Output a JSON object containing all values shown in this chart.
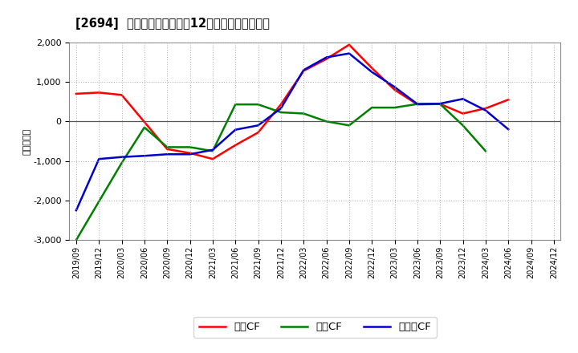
{
  "title": "[2694]  キャッシュフローの12か月移動合計の推移",
  "ylabel": "（百万円）",
  "ylim": [
    -3000,
    2000
  ],
  "yticks": [
    -3000,
    -2000,
    -1000,
    0,
    1000,
    2000
  ],
  "background_color": "#ffffff",
  "grid_color": "#aaaaaa",
  "dates": [
    "2019/09",
    "2019/12",
    "2020/03",
    "2020/06",
    "2020/09",
    "2020/12",
    "2021/03",
    "2021/06",
    "2021/09",
    "2021/12",
    "2022/03",
    "2022/06",
    "2022/09",
    "2022/12",
    "2023/03",
    "2023/06",
    "2023/09",
    "2023/12",
    "2024/03",
    "2024/06",
    "2024/09",
    "2024/12"
  ],
  "operating_cf": [
    700,
    730,
    670,
    null,
    -700,
    -800,
    -950,
    -600,
    -280,
    430,
    1280,
    1580,
    1940,
    1350,
    800,
    430,
    440,
    200,
    330,
    550,
    null,
    null
  ],
  "investing_cf": [
    -3000,
    null,
    -1050,
    -150,
    -650,
    -650,
    -750,
    430,
    430,
    230,
    200,
    0,
    -100,
    350,
    350,
    440,
    440,
    -100,
    -750,
    null,
    null,
    null
  ],
  "free_cf": [
    -2250,
    -950,
    -900,
    -870,
    -830,
    -830,
    -720,
    -210,
    -100,
    330,
    1300,
    1620,
    1720,
    1250,
    870,
    440,
    450,
    570,
    280,
    -200,
    null,
    null
  ],
  "operating_color": "#ff0000",
  "investing_color": "#008000",
  "free_color": "#0000cc",
  "line_width": 1.8,
  "legend_labels": [
    "営業CF",
    "投資CF",
    "フリーCF"
  ]
}
